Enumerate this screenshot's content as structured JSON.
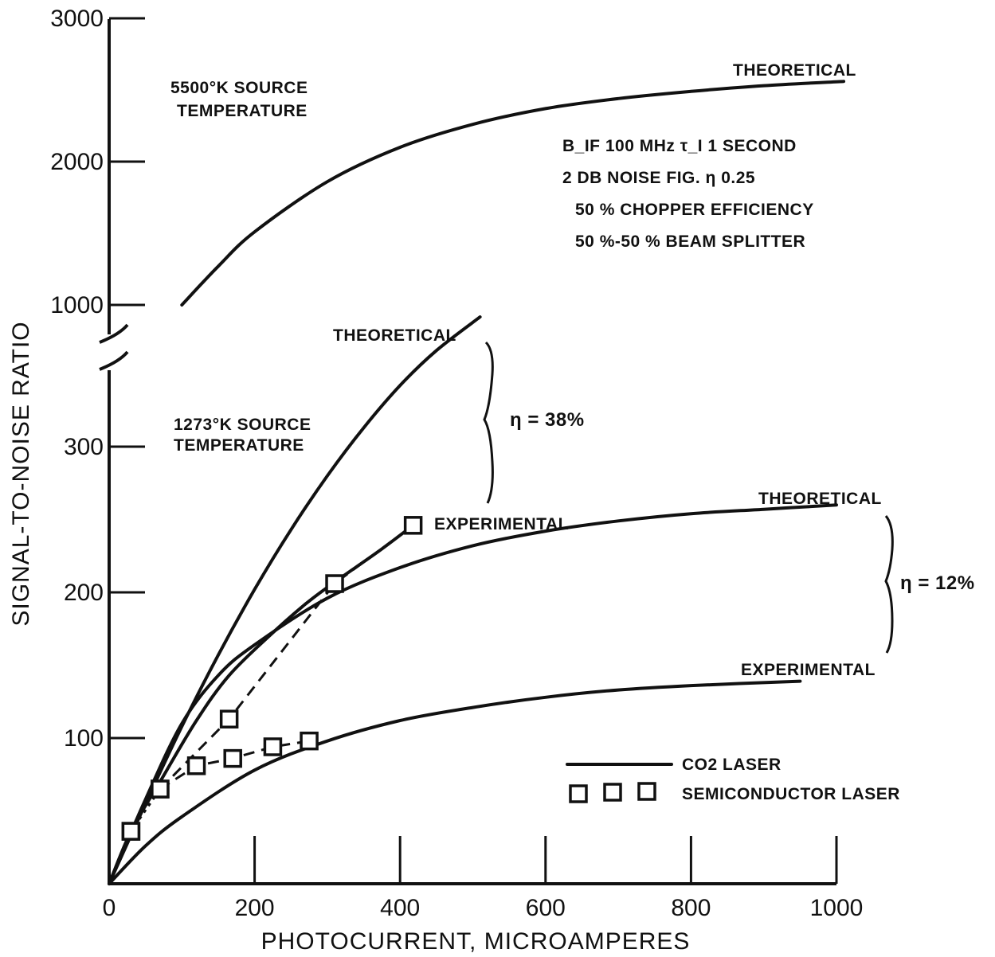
{
  "chart_data": {
    "type": "line",
    "xlabel": "PHOTOCURRENT, MICROAMPERES",
    "ylabel": "SIGNAL-TO-NOISE RATIO",
    "xlim": [
      0,
      1000
    ],
    "x_ticks": [
      0,
      200,
      400,
      600,
      800,
      1000
    ],
    "y_upper_ticks": [
      1000,
      2000,
      3000
    ],
    "y_lower_ticks": [
      100,
      200,
      300
    ],
    "axis_break": "between 350 and 1000 on y axis",
    "annotations": {
      "upper_source": [
        "5500°K SOURCE",
        "TEMPERATURE"
      ],
      "lower_source": [
        "1273°K SOURCE",
        "TEMPERATURE"
      ],
      "conditions": [
        "B_IF 100 MHz  τ_I 1 SECOND",
        "2 DB NOISE FIG.  η 0.25",
        "50 % CHOPPER EFFICIENCY",
        "50 %-50 % BEAM SPLITTER"
      ],
      "eta_38": "η = 38%",
      "eta_12": "η = 12%"
    },
    "legend": {
      "placement": "bottom-right",
      "items": [
        "CO2 LASER",
        "SEMICONDUCTOR LASER"
      ]
    },
    "series": [
      {
        "name": "THEORETICAL",
        "group": "5500°K source",
        "panel": "upper",
        "style": "solid",
        "x": [
          100,
          150,
          200,
          300,
          400,
          500,
          600,
          700,
          800,
          900,
          1010
        ],
        "y": [
          1000,
          1270,
          1510,
          1860,
          2100,
          2260,
          2370,
          2440,
          2490,
          2530,
          2560
        ]
      },
      {
        "name": "THEORETICAL",
        "group": "1273°K, η = 38%",
        "panel": "lower",
        "style": "solid",
        "x": [
          0,
          50,
          100,
          150,
          200,
          250,
          300,
          350,
          400,
          450,
          510
        ],
        "y": [
          0,
          55,
          108,
          157,
          202,
          243,
          280,
          313,
          342,
          366,
          389
        ]
      },
      {
        "name": "EXPERIMENTAL",
        "group": "1273°K, η = 38%",
        "panel": "lower",
        "style": "solid",
        "x": [
          0,
          30,
          70,
          120,
          165,
          220,
          270,
          310,
          370,
          418
        ],
        "y": [
          0,
          36,
          70,
          112,
          143,
          170,
          192,
          207,
          228,
          246
        ]
      },
      {
        "name": "THEORETICAL",
        "group": "1273°K, η = 12%",
        "panel": "lower",
        "style": "solid",
        "x": [
          0,
          50,
          100,
          150,
          200,
          300,
          400,
          500,
          600,
          700,
          800,
          900,
          1000
        ],
        "y": [
          0,
          58,
          110,
          143,
          164,
          196,
          217,
          232,
          242,
          249,
          254,
          257,
          260
        ]
      },
      {
        "name": "EXPERIMENTAL",
        "group": "1273°K, η = 12%",
        "panel": "lower",
        "style": "solid",
        "x": [
          0,
          50,
          100,
          200,
          300,
          400,
          500,
          600,
          700,
          800,
          950
        ],
        "y": [
          0,
          26,
          46,
          78,
          98,
          112,
          121,
          128,
          133,
          136,
          139
        ]
      },
      {
        "name": "SEMICONDUCTOR LASER",
        "group": "upper data set",
        "panel": "lower",
        "style": "dashed markers",
        "x": [
          30,
          70,
          165,
          310,
          418
        ],
        "y": [
          36,
          65,
          113,
          206,
          246
        ]
      },
      {
        "name": "SEMICONDUCTOR LASER",
        "group": "lower data set",
        "panel": "lower",
        "style": "dashed markers",
        "x": [
          30,
          70,
          120,
          170,
          225,
          275
        ],
        "y": [
          36,
          65,
          81,
          86,
          94,
          98
        ]
      }
    ]
  },
  "labels": {
    "theoretical_upper": "THEORETICAL",
    "theoretical_38": "THEORETICAL",
    "experimental_38": "EXPERIMENTAL",
    "theoretical_12": "THEORETICAL",
    "experimental_12": "EXPERIMENTAL"
  }
}
